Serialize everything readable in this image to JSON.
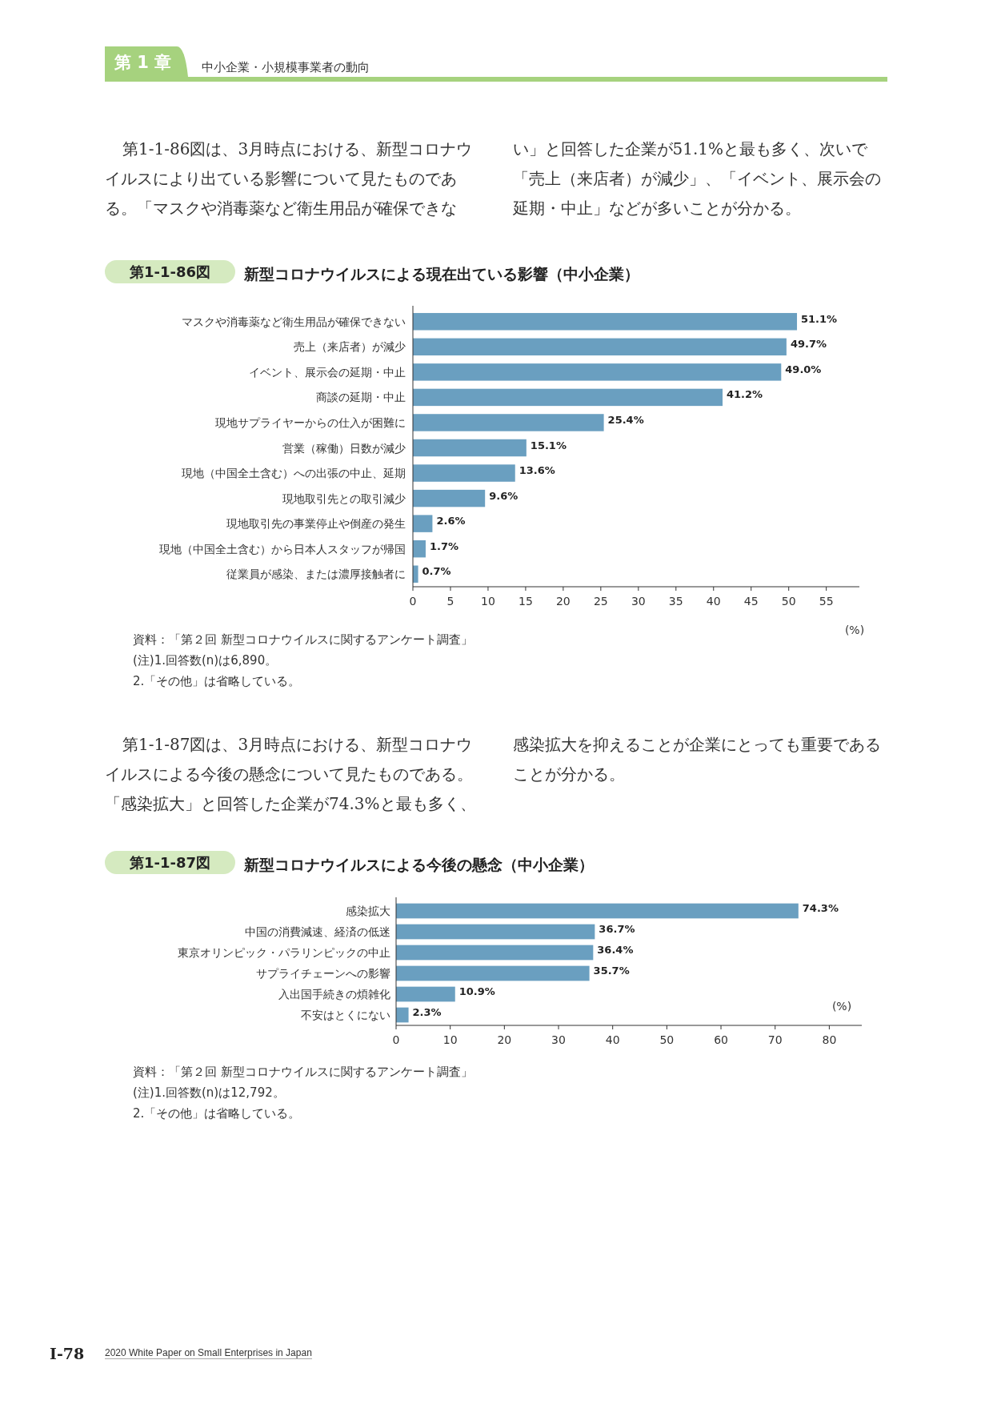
{
  "chart_data": [
    {
      "type": "bar",
      "orientation": "horizontal",
      "title": "新型コロナウイルスによる現在出ている影響（中小企業）",
      "xlabel": "(%)",
      "color": "#6a9fc0",
      "categories": [
        "マスクや消毒薬など衛生用品が確保できない",
        "売上（来店者）が減少",
        "イベント、展示会の延期・中止",
        "商談の延期・中止",
        "現地サプライヤーからの仕入が困難に",
        "営業（稼働）日数が減少",
        "現地（中国全土含む）への出張の中止、延期",
        "現地取引先との取引減少",
        "現地取引先の事業停止や倒産の発生",
        "現地（中国全土含む）から日本人スタッフが帰国",
        "従業員が感染、または濃厚接触者に"
      ],
      "values": [
        51.1,
        49.7,
        49.0,
        41.2,
        25.4,
        15.1,
        13.6,
        9.6,
        2.6,
        1.7,
        0.7
      ],
      "value_labels": [
        "51.1%",
        "49.7%",
        "49.0%",
        "41.2%",
        "25.4%",
        "15.1%",
        "13.6%",
        "9.6%",
        "2.6%",
        "1.7%",
        "0.7%"
      ],
      "xlim": [
        0,
        59.4
      ],
      "xticks": [
        0,
        5,
        10,
        15,
        20,
        25,
        30,
        35,
        40,
        45,
        50,
        55
      ],
      "annotations": [
        "第 1 章",
        "中小企業・小規模事業者の動向",
        "第1-1-86図は、3月時点における、新型コロナウイルスにより出ている影響について見たものである。「マスクや消毒薬など衛生用品が確保できない」と回答した企業が51.1%と最も多く、次いで「売上（来店者）が減少」、「イベント、展示会の延期・中止」などが多いことが分かる。",
        "第1-1-86図",
        "資料：「第２回 新型コロナウイルスに関するアンケート調査」",
        "(注)1.回答数(n)は6,890。",
        "2.「その他」は省略している。"
      ]
    },
    {
      "type": "bar",
      "orientation": "horizontal",
      "title": "新型コロナウイルスによる今後の懸念（中小企業）",
      "xlabel": "(%)",
      "color": "#6a9fc0",
      "categories": [
        "感染拡大",
        "中国の消費減速、経済の低迷",
        "東京オリンピック・パラリンピックの中止",
        "サプライチェーンへの影響",
        "入出国手続きの煩雑化",
        "不安はとくにない"
      ],
      "values": [
        74.3,
        36.7,
        36.4,
        35.7,
        10.9,
        2.3
      ],
      "value_labels": [
        "74.3%",
        "36.7%",
        "36.4%",
        "35.7%",
        "10.9%",
        "2.3%"
      ],
      "xlim": [
        0,
        86
      ],
      "xticks": [
        0,
        10,
        20,
        30,
        40,
        50,
        60,
        70,
        80
      ],
      "annotations": [
        "第1-1-87図は、3月時点における、新型コロナウイルスによる今後の懸念について見たものである。「感染拡大」と回答した企業が74.3%と最も多く、感染拡大を抑えることが企業にとっても重要であることが分かる。",
        "第1-1-87図",
        "資料：「第２回 新型コロナウイルスに関するアンケート調査」",
        "(注)1.回答数(n)は12,792。",
        "2.「その他」は省略している。",
        "I-78",
        "2020 White Paper on Small Enterprises in Japan"
      ]
    }
  ]
}
